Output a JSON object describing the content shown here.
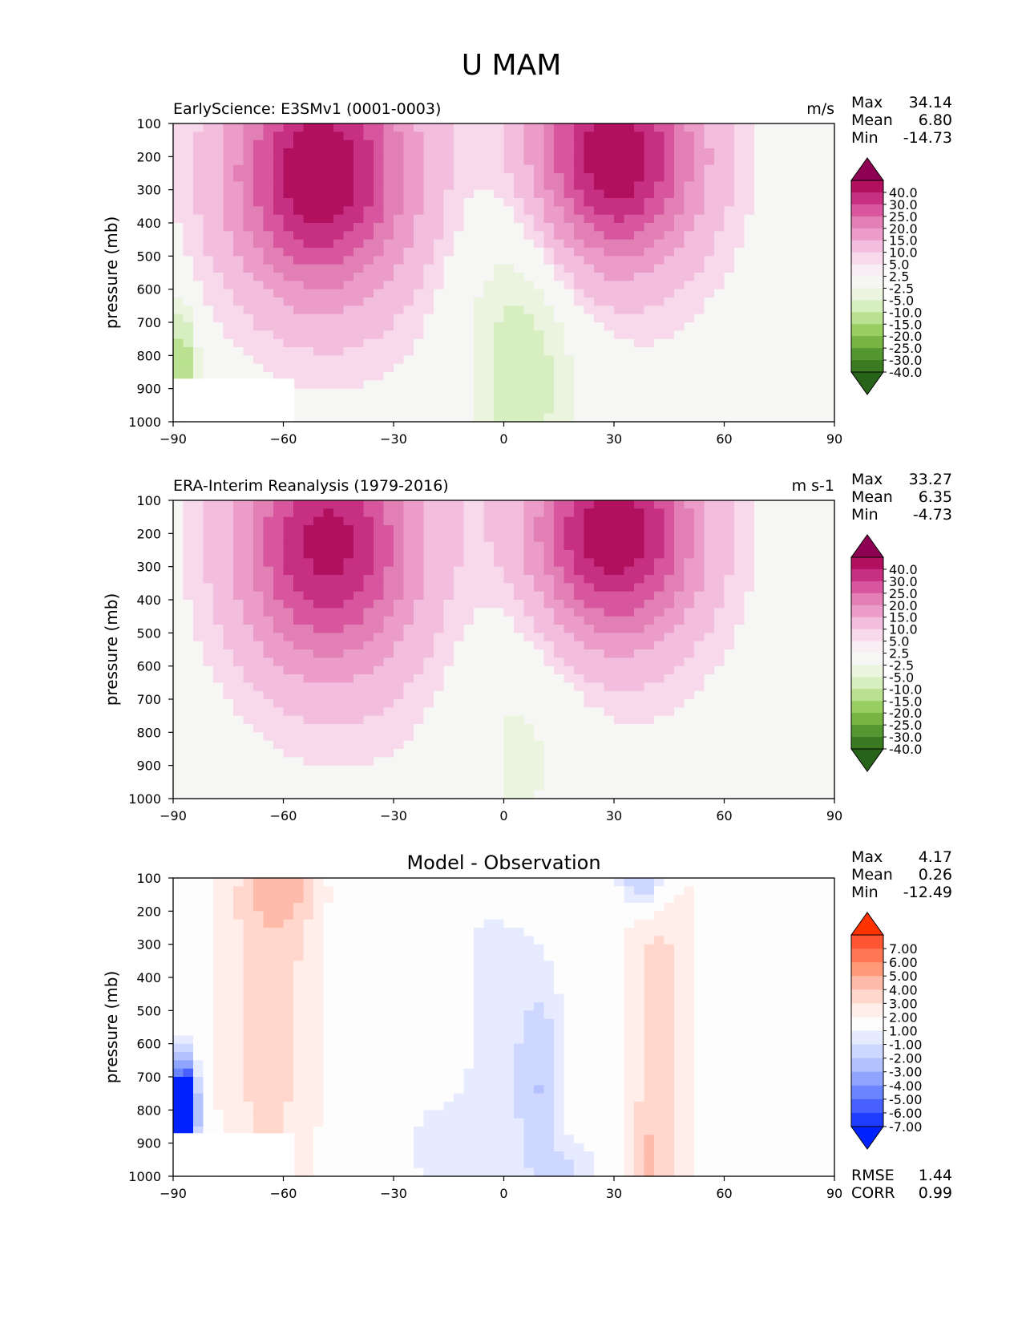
{
  "title": "U MAM",
  "stat_labels": {
    "max": "Max",
    "mean": "Mean",
    "min": "Min",
    "rmse": "RMSE",
    "corr": "CORR"
  },
  "chart_data": [
    {
      "type": "heatmap",
      "title": "EarlyScience: E3SMv1 (0001-0003)",
      "units": "m/s",
      "xlabel": "",
      "ylabel": "pressure (mb)",
      "xlim": [
        -90,
        90
      ],
      "ylim": [
        100,
        1000
      ],
      "y_inverted": true,
      "x_ticks": [
        "−90",
        "−60",
        "−30",
        "0",
        "30",
        "60",
        "90"
      ],
      "y_ticks": [
        "100",
        "200",
        "300",
        "400",
        "500",
        "600",
        "700",
        "800",
        "900",
        "1000"
      ],
      "stats": {
        "max": "34.14",
        "mean": "6.80",
        "min": "-14.73"
      },
      "colorbar": {
        "labels": [
          "40.0",
          "30.0",
          "25.0",
          "20.0",
          "15.0",
          "10.0",
          "5.0",
          "2.5",
          "-2.5",
          "-5.0",
          "-10.0",
          "-15.0",
          "-20.0",
          "-25.0",
          "-30.0",
          "-40.0"
        ],
        "colors": [
          "#8e0152",
          "#b1105f",
          "#c62f82",
          "#d7569e",
          "#e280b6",
          "#ec9cc8",
          "#f3bedd",
          "#f8d9eb",
          "#f8eef3",
          "#f6f6f4",
          "#eaf4de",
          "#d7efc0",
          "#b9e18f",
          "#98cd62",
          "#78b442",
          "#54962f",
          "#3a7b22",
          "#276419"
        ]
      },
      "jets": [
        {
          "lat": -50,
          "lev": 250,
          "peak": 34.1,
          "lat_width": 17,
          "lev_width": 260
        },
        {
          "lat": 30,
          "lev": 200,
          "peak": 33.8,
          "lat_width": 16,
          "lev_width": 230
        }
      ],
      "easterlies": [
        {
          "lat": 5,
          "lev": 800,
          "peak": -8.5,
          "lat_width": 12,
          "lev_width": 420
        },
        {
          "lat": -88,
          "lev": 830,
          "peak": -14.7,
          "lat_width": 3,
          "lev_width": 120
        }
      ],
      "missing_region": {
        "lat_from": -90,
        "lat_to": -57,
        "lev_from": 870,
        "lev_to": 1000
      }
    },
    {
      "type": "heatmap",
      "title": "ERA-Interim Reanalysis (1979-2016)",
      "units": "m s-1",
      "xlabel": "",
      "ylabel": "pressure (mb)",
      "xlim": [
        -90,
        90
      ],
      "ylim": [
        100,
        1000
      ],
      "y_inverted": true,
      "x_ticks": [
        "−90",
        "−60",
        "−30",
        "0",
        "30",
        "60",
        "90"
      ],
      "y_ticks": [
        "100",
        "200",
        "300",
        "400",
        "500",
        "600",
        "700",
        "800",
        "900",
        "1000"
      ],
      "stats": {
        "max": "33.27",
        "mean": "6.35",
        "min": "-4.73"
      },
      "colorbar": {
        "labels": [
          "40.0",
          "30.0",
          "25.0",
          "20.0",
          "15.0",
          "10.0",
          "5.0",
          "2.5",
          "-2.5",
          "-5.0",
          "-10.0",
          "-15.0",
          "-20.0",
          "-25.0",
          "-30.0",
          "-40.0"
        ],
        "colors": [
          "#8e0152",
          "#b1105f",
          "#c62f82",
          "#d7569e",
          "#e280b6",
          "#ec9cc8",
          "#f3bedd",
          "#f8d9eb",
          "#f8eef3",
          "#f6f6f4",
          "#eaf4de",
          "#d7efc0",
          "#b9e18f",
          "#98cd62",
          "#78b442",
          "#54962f",
          "#3a7b22",
          "#276419"
        ]
      },
      "jets": [
        {
          "lat": -48,
          "lev": 230,
          "peak": 31.0,
          "lat_width": 17,
          "lev_width": 270
        },
        {
          "lat": 30,
          "lev": 200,
          "peak": 33.3,
          "lat_width": 16,
          "lev_width": 230
        }
      ],
      "easterlies": [
        {
          "lat": 5,
          "lev": 820,
          "peak": -4.7,
          "lat_width": 12,
          "lev_width": 380
        }
      ],
      "missing_region": null
    },
    {
      "type": "heatmap",
      "title": "Model - Observation",
      "units": "",
      "xlabel": "",
      "ylabel": "pressure (mb)",
      "xlim": [
        -90,
        90
      ],
      "ylim": [
        100,
        1000
      ],
      "y_inverted": true,
      "x_ticks": [
        "−90",
        "−60",
        "−30",
        "0",
        "30",
        "60",
        "90"
      ],
      "y_ticks": [
        "100",
        "200",
        "300",
        "400",
        "500",
        "600",
        "700",
        "800",
        "900",
        "1000"
      ],
      "stats": {
        "max": "4.17",
        "mean": "0.26",
        "min": "-12.49",
        "rmse": "1.44",
        "corr": "0.99"
      },
      "colorbar": {
        "labels": [
          "7.00",
          "6.00",
          "5.00",
          "4.00",
          "3.00",
          "2.00",
          "1.00",
          "-1.00",
          "-2.00",
          "-3.00",
          "-4.00",
          "-5.00",
          "-6.00",
          "-7.00"
        ],
        "colors": [
          "#ff3300",
          "#ff5533",
          "#ff7755",
          "#ff9977",
          "#ffbbaa",
          "#ffd7cc",
          "#ffeeea",
          "#fdfdfd",
          "#e6ebff",
          "#cdd7ff",
          "#b3c1ff",
          "#8fa4ff",
          "#6b84ff",
          "#4760ff",
          "#1f3dff",
          "#0022ff"
        ]
      },
      "anomalies": [
        {
          "lat": -64,
          "lev": 400,
          "amp": 2.6,
          "lat_width": 11,
          "lev_width": 700
        },
        {
          "lat": -60,
          "lev": 130,
          "amp": 1.6,
          "lat_width": 6,
          "lev_width": 80
        },
        {
          "lat": 42,
          "lev": 600,
          "amp": 2.4,
          "lat_width": 8,
          "lev_width": 650
        },
        {
          "lat": 39,
          "lev": 950,
          "amp": 1.6,
          "lat_width": 3,
          "lev_width": 80
        },
        {
          "lat": 10,
          "lev": 130,
          "amp": 1.1,
          "lat_width": 10,
          "lev_width": 60
        },
        {
          "lat": 70,
          "lev": 120,
          "amp": 0.9,
          "lat_width": 10,
          "lev_width": 60
        },
        {
          "lat": 71,
          "lev": 870,
          "amp": 0.8,
          "lat_width": 1.6,
          "lev_width": 80
        },
        {
          "lat": 38,
          "lev": 110,
          "amp": -4.5,
          "lat_width": 5,
          "lev_width": 60
        },
        {
          "lat": -3,
          "lev": 450,
          "amp": -1.2,
          "lat_width": 9,
          "lev_width": 650
        },
        {
          "lat": 10,
          "lev": 740,
          "amp": -2.6,
          "lat_width": 5,
          "lev_width": 260
        },
        {
          "lat": -20,
          "lev": 920,
          "amp": -1.1,
          "lat_width": 8,
          "lev_width": 150
        },
        {
          "lat": 20,
          "lev": 980,
          "amp": -1.8,
          "lat_width": 5,
          "lev_width": 60
        },
        {
          "lat": -87,
          "lev": 800,
          "amp": -12.5,
          "lat_width": 2.5,
          "lev_width": 110
        }
      ],
      "missing_region": {
        "lat_from": -90,
        "lat_to": -57,
        "lev_from": 870,
        "lev_to": 1000
      }
    }
  ]
}
